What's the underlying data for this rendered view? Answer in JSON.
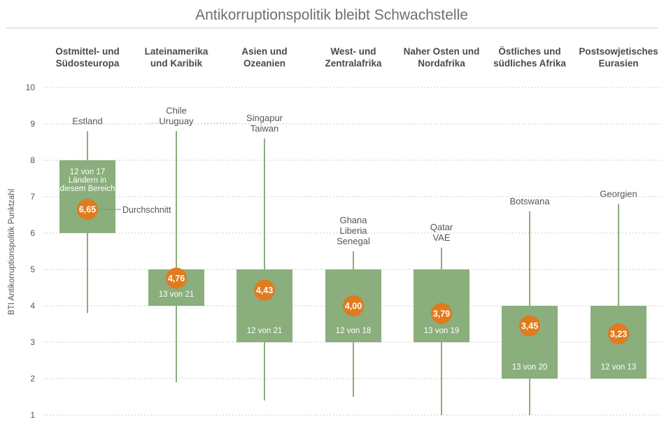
{
  "chart_data": {
    "type": "boxplot",
    "title": "Antikorruptionspolitik bleibt Schwachstelle",
    "ylabel": "BTI Antikorruptionspolitik Punktzahl",
    "ylim": [
      1,
      10
    ],
    "yticks": [
      "1",
      "2",
      "3",
      "4",
      "5",
      "6",
      "7",
      "8",
      "9",
      "10"
    ],
    "mean_label": "Durchschnitt",
    "box_color": "#8aae7c",
    "mean_color": "#e07b1f",
    "grid": "dotted horizontal",
    "groups": [
      {
        "region": [
          "Ostmittel- und",
          "Südosteuropa"
        ],
        "max": 8.8,
        "min": 3.8,
        "box_low": 6,
        "box_high": 8,
        "mean": 6.65,
        "mean_label": "6,65",
        "count_lines": [
          "12 von 17",
          "Ländern in",
          "diesem Bereich"
        ],
        "top_countries": [
          "Estland"
        ]
      },
      {
        "region": [
          "Lateinamerika",
          "und Karibik"
        ],
        "max": 8.8,
        "min": 1.9,
        "box_low": 4,
        "box_high": 5,
        "mean": 4.76,
        "mean_label": "4,76",
        "count_lines": [
          "13 von 21"
        ],
        "top_countries": [
          "Chile",
          "Uruguay"
        ]
      },
      {
        "region": [
          "Asien und",
          "Ozeanien"
        ],
        "max": 8.6,
        "min": 1.4,
        "box_low": 3,
        "box_high": 5,
        "mean": 4.43,
        "mean_label": "4,43",
        "count_lines": [
          "12 von 21"
        ],
        "top_countries": [
          "Singapur",
          "Taiwan"
        ]
      },
      {
        "region": [
          "West- und",
          "Zentralafrika"
        ],
        "max": 5.5,
        "min": 1.5,
        "box_low": 3,
        "box_high": 5,
        "mean": 4.0,
        "mean_label": "4,00",
        "count_lines": [
          "12 von 18"
        ],
        "top_countries": [
          "Ghana",
          "Liberia",
          "Senegal"
        ]
      },
      {
        "region": [
          "Naher Osten und",
          "Nordafrika"
        ],
        "max": 5.6,
        "min": 1.0,
        "box_low": 3,
        "box_high": 5,
        "mean": 3.79,
        "mean_label": "3,79",
        "count_lines": [
          "13 von 19"
        ],
        "top_countries": [
          "Qatar",
          "VAE"
        ]
      },
      {
        "region": [
          "Östliches und",
          "südliches Afrika"
        ],
        "max": 6.6,
        "min": 1.0,
        "box_low": 2,
        "box_high": 4,
        "mean": 3.45,
        "mean_label": "3,45",
        "count_lines": [
          "13 von 20"
        ],
        "top_countries": [
          "Botswana"
        ]
      },
      {
        "region": [
          "Postsowjetisches",
          "Eurasien"
        ],
        "max": 6.8,
        "min": 2.0,
        "box_low": 2,
        "box_high": 4,
        "mean": 3.23,
        "mean_label": "3,23",
        "count_lines": [
          "12 von 13"
        ],
        "top_countries": [
          "Georgien"
        ]
      }
    ]
  }
}
